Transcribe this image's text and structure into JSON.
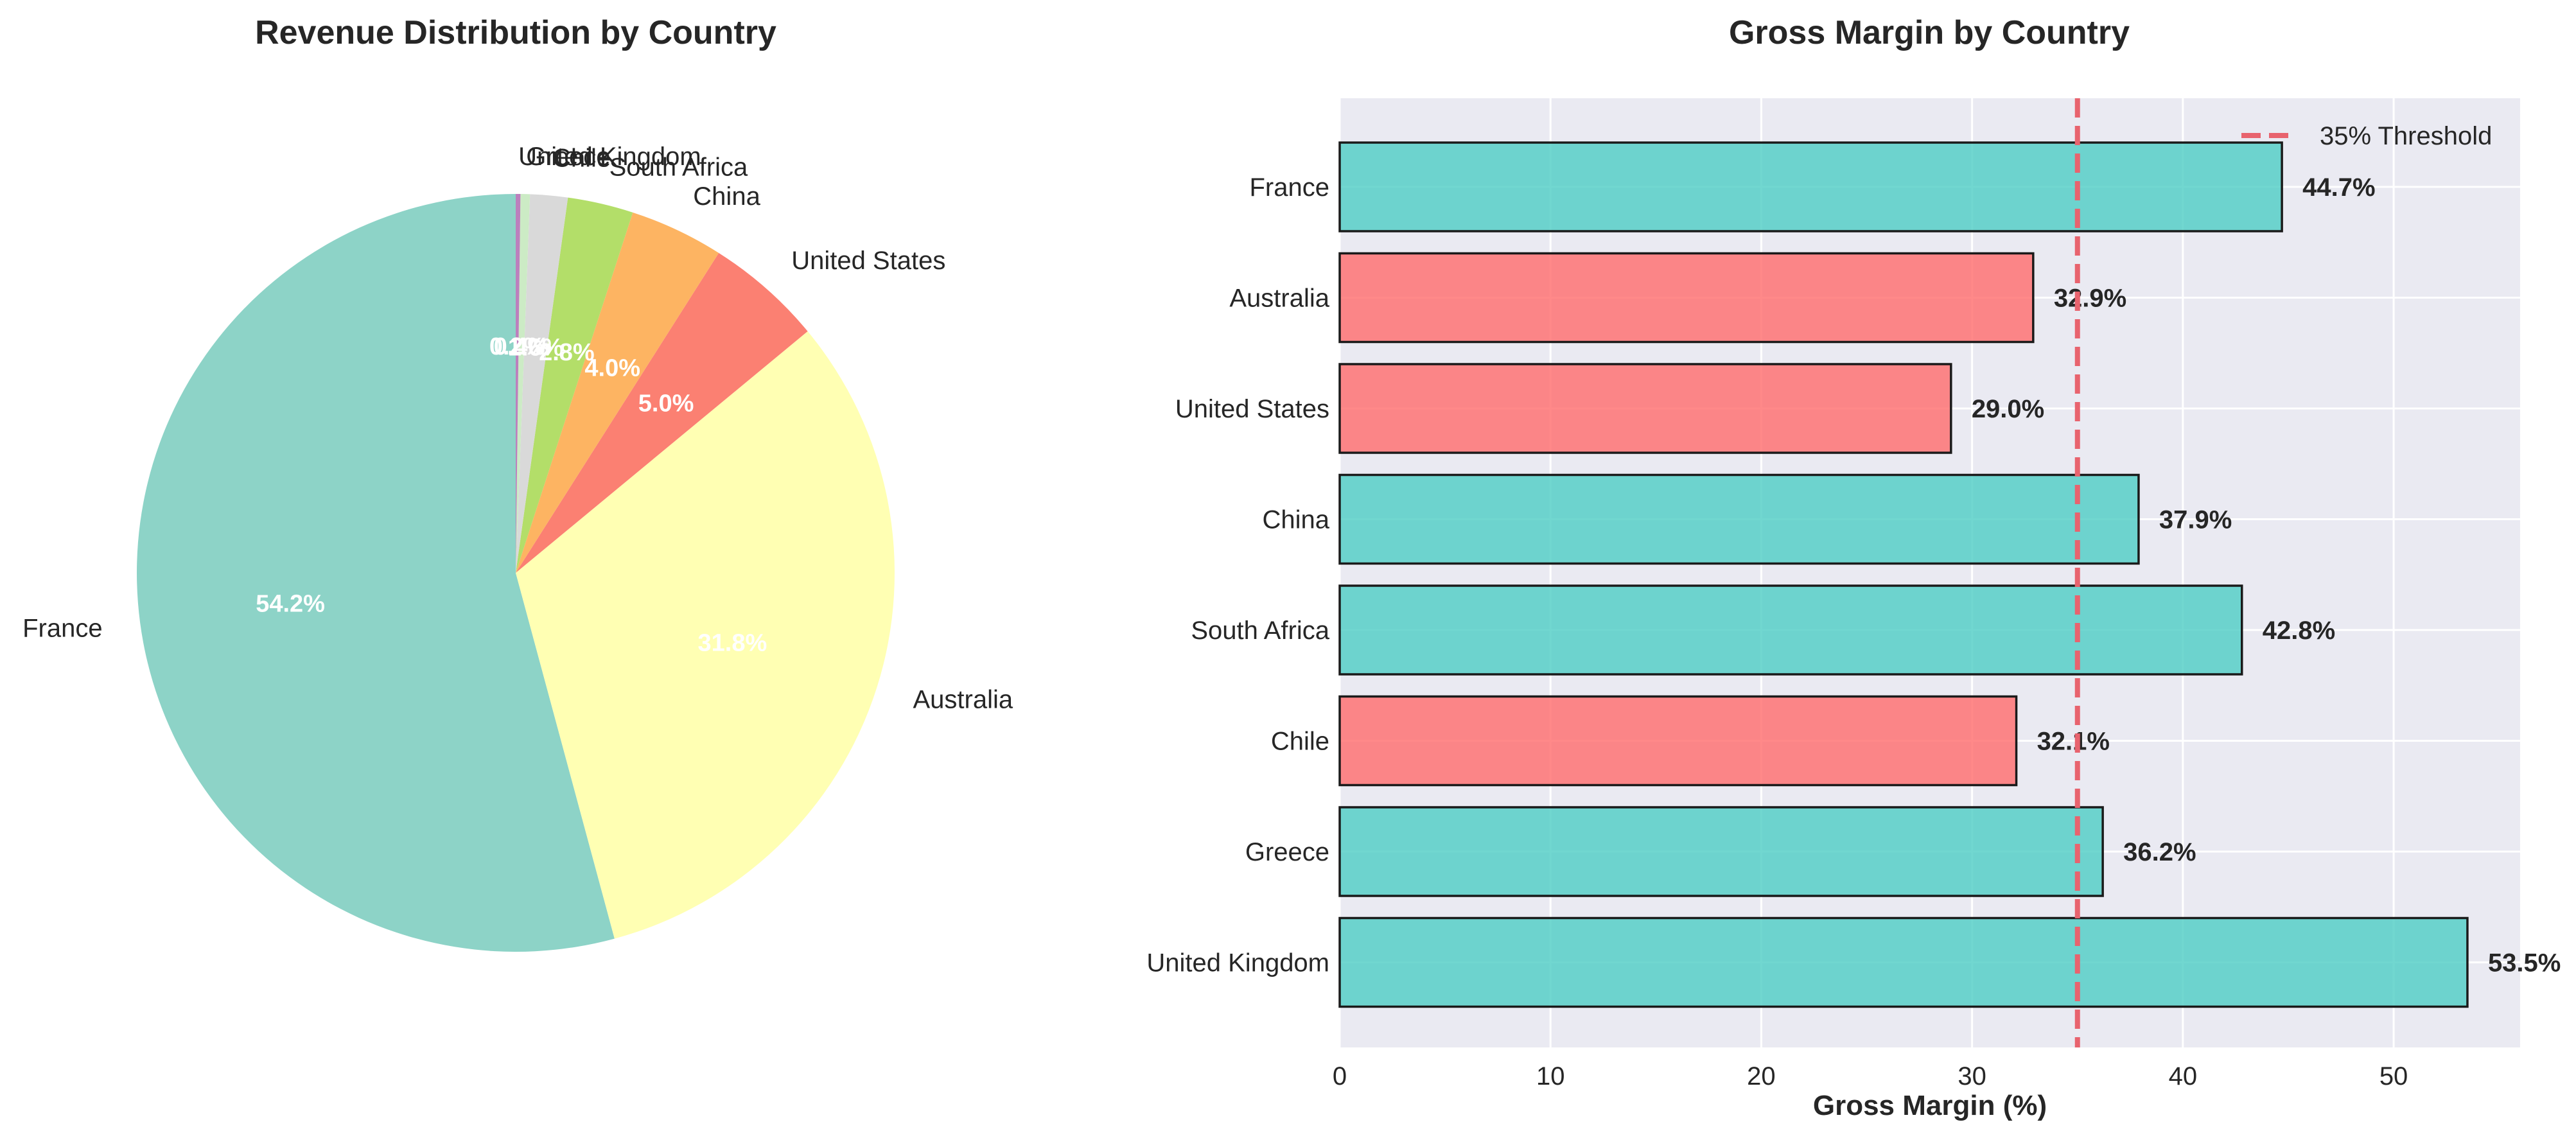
{
  "chart_data": [
    {
      "type": "pie",
      "title": "Revenue Distribution by Country",
      "categories": [
        "France",
        "Australia",
        "United States",
        "China",
        "South Africa",
        "Chile",
        "Greece",
        "United Kingdom"
      ],
      "values": [
        54.2,
        31.8,
        5.0,
        4.0,
        2.8,
        1.6,
        0.4,
        0.2
      ],
      "percent_labels": [
        "54.2%",
        "31.8%",
        "5.0%",
        "4.0%",
        "2.8%",
        "1.6%",
        "0.4%",
        "0.2%"
      ],
      "colors": [
        "#8dd3c7",
        "#ffffb3",
        "#fb8072",
        "#fdb462",
        "#b3de69",
        "#d9d9d9",
        "#ccebc5",
        "#bc80bd"
      ],
      "start_angle_deg": 90,
      "direction": "counterclockwise"
    },
    {
      "type": "bar",
      "orientation": "horizontal",
      "title": "Gross Margin by Country",
      "categories": [
        "France",
        "Australia",
        "United States",
        "China",
        "South Africa",
        "Chile",
        "Greece",
        "United Kingdom"
      ],
      "values": [
        44.7,
        32.9,
        29.0,
        37.9,
        42.8,
        32.1,
        36.2,
        53.5
      ],
      "value_labels": [
        "44.7%",
        "32.9%",
        "29.0%",
        "37.9%",
        "42.8%",
        "32.1%",
        "36.2%",
        "53.5%"
      ],
      "xlabel": "Gross Margin (%)",
      "ylabel": "",
      "xlim": [
        0,
        56
      ],
      "xticks": [
        "0",
        "10",
        "20",
        "30",
        "40",
        "50"
      ],
      "threshold": {
        "value": 35,
        "label": "35% Threshold",
        "color": "#e8636e"
      },
      "color_above": "#4ecdc4",
      "color_below": "#ff6b6b",
      "grid": true,
      "legend_position": "top-right"
    }
  ]
}
